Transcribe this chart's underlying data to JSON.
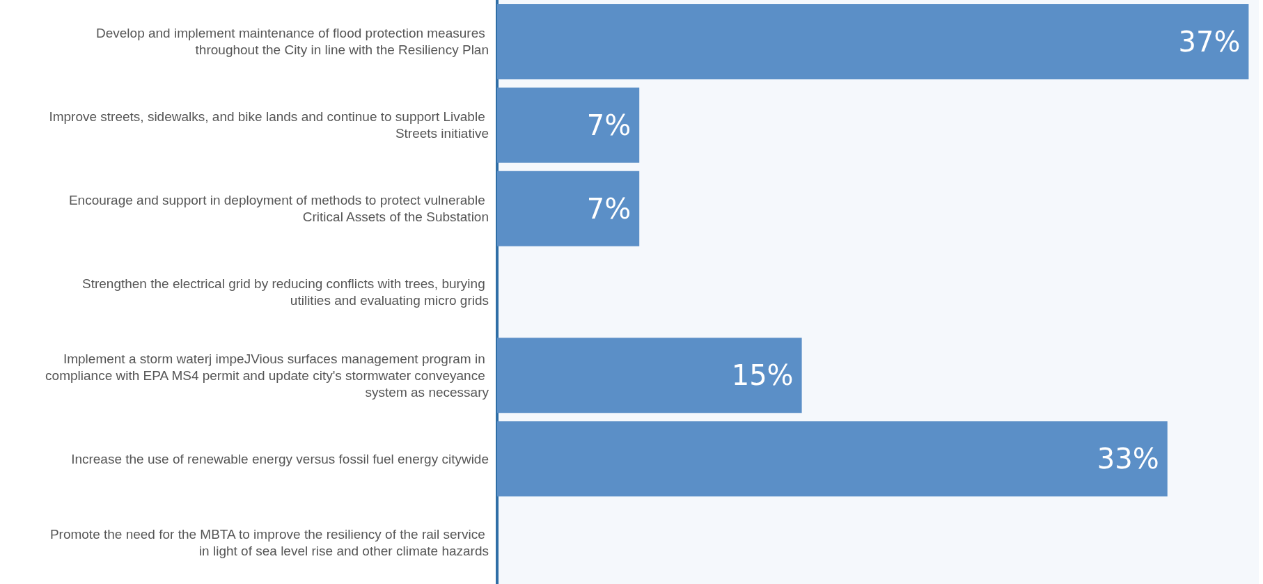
{
  "chart_data": {
    "type": "bar",
    "orientation": "horizontal",
    "categories": [
      "Develop and implement maintenance of flood protection measures throughout the City in line with the Resiliency Plan",
      "Improve streets, sidewalks, and bike lands and continue to support Livable Streets initiative",
      "Encourage and support in deployment of methods to protect vulnerable Critical Assets of the Substation",
      "Strengthen the electrical grid by reducing conflicts with trees, burying utilities and evaluating micro grids",
      "Implement a storm waterj impeJVious surfaces management program in compliance with EPA MS4 permit and update city's stormwater conveyance system as necessary",
      "Increase the use of renewable energy versus fossil fuel energy citywide",
      "Promote the need for the MBTA to improve the resiliency of the rail service in light of sea level rise and other climate hazards"
    ],
    "values": [
      37,
      7,
      7,
      0,
      15,
      33,
      0
    ],
    "value_labels": [
      "37%",
      "7%",
      "7%",
      null,
      "15%",
      "33%",
      null
    ],
    "color": "#5b8fc7",
    "xlim": [
      0,
      37.5
    ],
    "tick_labels": "y"
  }
}
